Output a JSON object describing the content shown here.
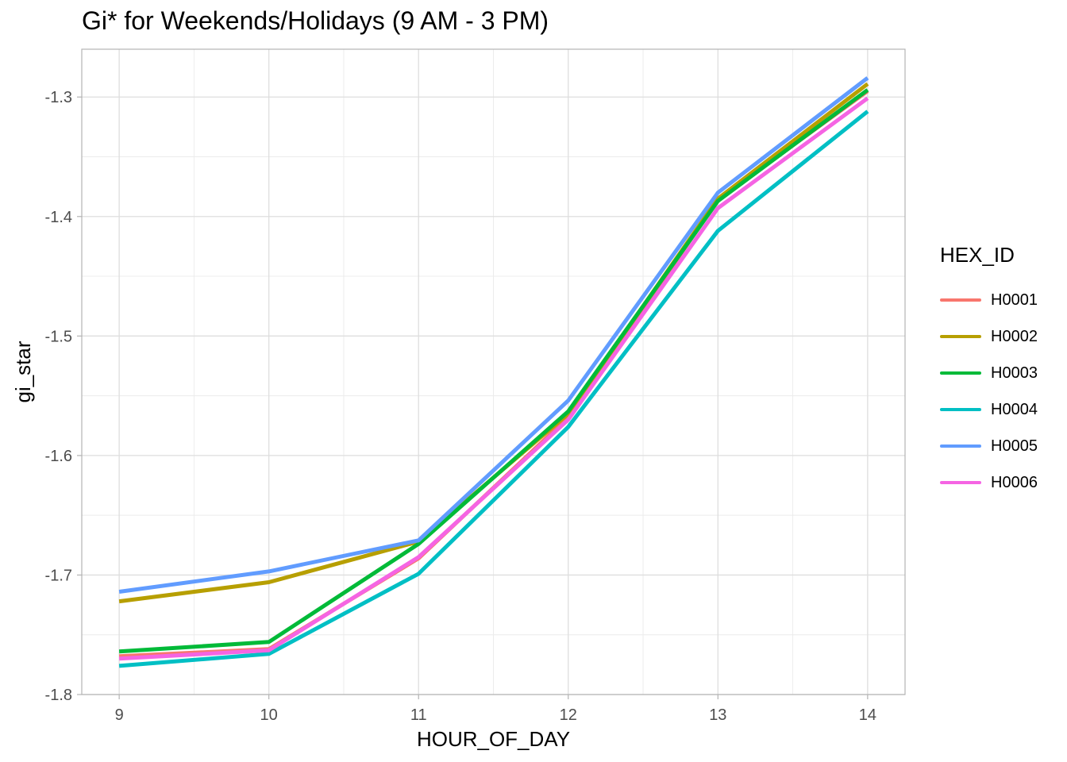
{
  "chart_data": {
    "type": "line",
    "title": "Gi* for Weekends/Holidays (9 AM - 3 PM)",
    "xlabel": "HOUR_OF_DAY",
    "ylabel": "gi_star",
    "x": [
      9,
      10,
      11,
      12,
      13,
      14
    ],
    "xlim": [
      8.75,
      14.25
    ],
    "ylim": [
      -1.8,
      -1.26
    ],
    "x_ticks": [
      9,
      10,
      11,
      12,
      13,
      14
    ],
    "y_ticks": [
      -1.8,
      -1.7,
      -1.6,
      -1.5,
      -1.4,
      -1.3
    ],
    "y_tick_labels": [
      "-1.8",
      "-1.7",
      "-1.6",
      "-1.5",
      "-1.4",
      "-1.3"
    ],
    "grid": true,
    "legend_title": "HEX_ID",
    "legend_position": "right",
    "series": [
      {
        "name": "H0001",
        "color": "#F8766D",
        "values": [
          -1.768,
          -1.762,
          -1.686,
          -1.568,
          -1.386,
          -1.295
        ]
      },
      {
        "name": "H0002",
        "color": "#B79F00",
        "values": [
          -1.722,
          -1.706,
          -1.672,
          -1.565,
          -1.385,
          -1.289
        ]
      },
      {
        "name": "H0003",
        "color": "#00BA38",
        "values": [
          -1.764,
          -1.756,
          -1.674,
          -1.563,
          -1.387,
          -1.294
        ]
      },
      {
        "name": "H0004",
        "color": "#00BFC4",
        "values": [
          -1.776,
          -1.766,
          -1.699,
          -1.576,
          -1.412,
          -1.312
        ]
      },
      {
        "name": "H0005",
        "color": "#619CFF",
        "values": [
          -1.714,
          -1.697,
          -1.671,
          -1.554,
          -1.38,
          -1.284
        ]
      },
      {
        "name": "H0006",
        "color": "#F564E3",
        "values": [
          -1.77,
          -1.763,
          -1.685,
          -1.57,
          -1.393,
          -1.301
        ]
      }
    ]
  }
}
